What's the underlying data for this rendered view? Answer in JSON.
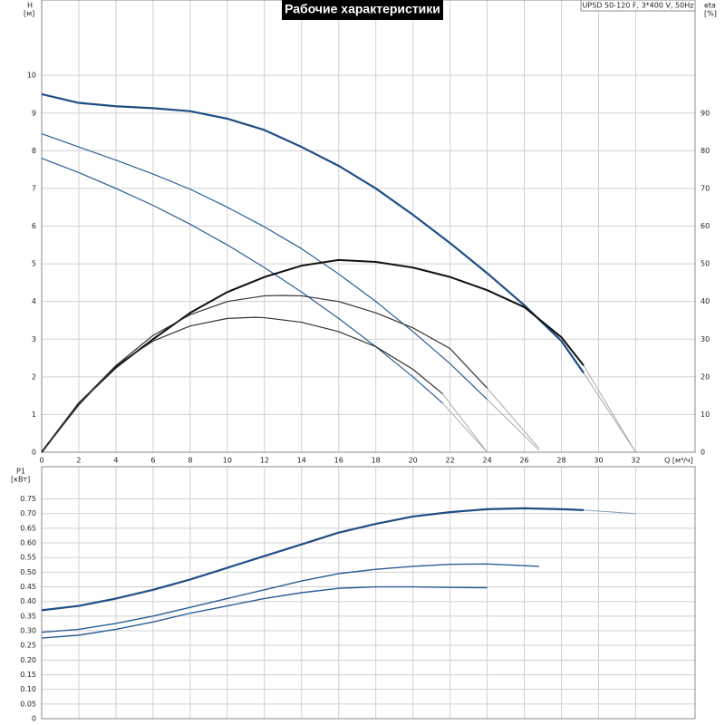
{
  "chart_data": [
    {
      "type": "line",
      "title": "Рабочие характеристики",
      "subtitle": "UPSD 50-120 F, 3*400 V, 50Hz",
      "ylabel": "H",
      "yunit": "[м]",
      "y2label": "eta",
      "y2unit": "[%]",
      "xlabel": "Q [м³/ч]",
      "xlim": [
        0,
        35.2
      ],
      "xticks": [
        0,
        2,
        4,
        6,
        8,
        10,
        12,
        14,
        16,
        18,
        20,
        22,
        24,
        26,
        28,
        30,
        32
      ],
      "ylim": [
        0,
        12
      ],
      "yticks": [
        0,
        1,
        2,
        3,
        4,
        5,
        6,
        7,
        8,
        9,
        10
      ],
      "y2lim": [
        0,
        120
      ],
      "y2ticks": [
        0,
        10,
        20,
        30,
        40,
        50,
        60,
        70,
        80,
        90
      ],
      "grid": true,
      "series": [
        {
          "color": "#1f4e85",
          "line_width": 2.2,
          "x": [
            0,
            2,
            4,
            6,
            8,
            10,
            12,
            14,
            16,
            18,
            20,
            22,
            24,
            26,
            28,
            29.2
          ],
          "values": [
            9.5,
            9.27,
            9.18,
            9.13,
            9.05,
            8.85,
            8.55,
            8.1,
            7.6,
            7.0,
            6.3,
            5.55,
            4.75,
            3.9,
            2.95,
            2.1
          ]
        },
        {
          "color": "#aaaaaa",
          "line_width": 1,
          "x": [
            29.2,
            32
          ],
          "values": [
            2.1,
            0
          ]
        },
        {
          "color": "#2a5d95",
          "line_width": 1.2,
          "x": [
            0,
            2,
            4,
            6,
            8,
            10,
            12,
            14,
            16,
            18,
            20,
            22,
            24
          ],
          "values": [
            8.45,
            8.1,
            7.75,
            7.38,
            6.98,
            6.5,
            5.98,
            5.4,
            4.73,
            4.0,
            3.2,
            2.35,
            1.4
          ]
        },
        {
          "color": "#aaaaaa",
          "line_width": 1,
          "x": [
            24,
            26.8
          ],
          "values": [
            1.4,
            0.05
          ]
        },
        {
          "color": "#2a5d95",
          "line_width": 1.2,
          "x": [
            0,
            2,
            4,
            6,
            8,
            10,
            12,
            14,
            16,
            18,
            20,
            21.6
          ],
          "values": [
            7.8,
            7.42,
            7.0,
            6.55,
            6.05,
            5.5,
            4.9,
            4.25,
            3.55,
            2.8,
            2.0,
            1.3
          ]
        },
        {
          "color": "#aaaaaa",
          "line_width": 1,
          "x": [
            21.6,
            24
          ],
          "values": [
            1.3,
            0
          ]
        },
        {
          "color": "#111111",
          "line_width": 2,
          "axis": "y2",
          "x": [
            0,
            2,
            4,
            6,
            8,
            10,
            12,
            14,
            16,
            18,
            20,
            22,
            24,
            26,
            28,
            29.2
          ],
          "values": [
            0,
            13,
            22.5,
            30,
            37,
            42.5,
            46.5,
            49.5,
            51,
            50.5,
            49,
            46.5,
            43,
            38.5,
            30.5,
            23
          ]
        },
        {
          "color": "#aaaaaa",
          "line_width": 1,
          "axis": "y2",
          "x": [
            29.2,
            32
          ],
          "values": [
            23,
            0
          ]
        },
        {
          "color": "#333333",
          "line_width": 1.2,
          "axis": "y2",
          "x": [
            0,
            2,
            4,
            6,
            8,
            10,
            12,
            13,
            14,
            16,
            18,
            20,
            22,
            24
          ],
          "values": [
            0,
            12.5,
            23,
            31,
            36.5,
            40,
            41.5,
            41.6,
            41.5,
            40,
            37,
            33,
            27.5,
            17
          ]
        },
        {
          "color": "#aaaaaa",
          "line_width": 1,
          "axis": "y2",
          "x": [
            24,
            26.8
          ],
          "values": [
            17,
            1
          ]
        },
        {
          "color": "#333333",
          "line_width": 1.2,
          "axis": "y2",
          "x": [
            0,
            2,
            4,
            6,
            8,
            10,
            11.5,
            12,
            14,
            16,
            18,
            20,
            21.6
          ],
          "values": [
            0,
            13,
            23,
            29.5,
            33.5,
            35.5,
            35.8,
            35.7,
            34.5,
            32,
            28,
            22,
            15.5
          ]
        },
        {
          "color": "#aaaaaa",
          "line_width": 1,
          "axis": "y2",
          "x": [
            21.6,
            24
          ],
          "values": [
            15.5,
            0
          ]
        }
      ]
    },
    {
      "type": "line",
      "ylabel": "P1",
      "yunit": "[кВт]",
      "xlim": [
        0,
        35.2
      ],
      "ylim": [
        0,
        0.86
      ],
      "yticks": [
        0,
        0.05,
        {
          "value": 0.1,
          "label": "0.10"
        },
        0.15,
        {
          "value": 0.2,
          "label": "0.20"
        },
        0.25,
        {
          "value": 0.3,
          "label": "0.30"
        },
        0.35,
        {
          "value": 0.4,
          "label": "0.40"
        },
        0.45,
        {
          "value": 0.5,
          "label": "0.50"
        },
        0.55,
        {
          "value": 0.6,
          "label": "0.60"
        },
        0.65,
        {
          "value": 0.7,
          "label": "0.70"
        },
        0.75
      ],
      "grid": true,
      "series": [
        {
          "color": "#1f4e85",
          "line_width": 2.2,
          "x": [
            0,
            2,
            4,
            6,
            8,
            10,
            12,
            14,
            16,
            18,
            20,
            22,
            24,
            26,
            28,
            29.2
          ],
          "values": [
            0.37,
            0.385,
            0.41,
            0.44,
            0.475,
            0.515,
            0.555,
            0.595,
            0.635,
            0.665,
            0.69,
            0.705,
            0.715,
            0.718,
            0.715,
            0.712
          ]
        },
        {
          "color": "#7f9fc0",
          "line_width": 1,
          "x": [
            29.2,
            32
          ],
          "values": [
            0.712,
            0.7
          ]
        },
        {
          "color": "#2a5d95",
          "line_width": 1.4,
          "x": [
            0,
            2,
            4,
            6,
            8,
            10,
            12,
            14,
            16,
            18,
            20,
            22,
            24,
            26.8
          ],
          "values": [
            0.295,
            0.305,
            0.325,
            0.35,
            0.38,
            0.41,
            0.44,
            0.47,
            0.495,
            0.51,
            0.52,
            0.527,
            0.528,
            0.52
          ]
        },
        {
          "color": "#2a5d95",
          "line_width": 1.4,
          "x": [
            0,
            2,
            4,
            6,
            8,
            10,
            12,
            14,
            16,
            18,
            20,
            22,
            24
          ],
          "values": [
            0.275,
            0.285,
            0.305,
            0.33,
            0.36,
            0.385,
            0.41,
            0.43,
            0.445,
            0.45,
            0.45,
            0.448,
            0.447
          ]
        }
      ]
    }
  ]
}
